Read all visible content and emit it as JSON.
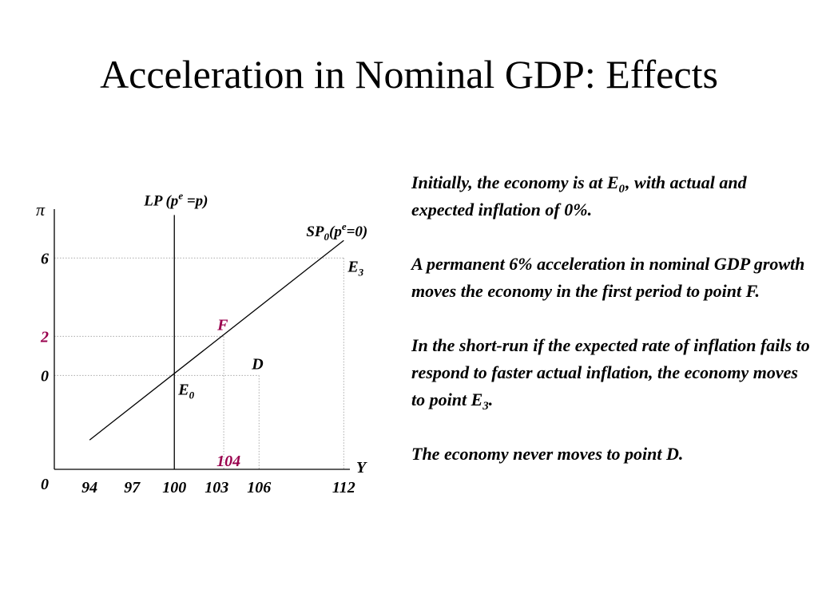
{
  "slide": {
    "title": "Acceleration in Nominal GDP: Effects"
  },
  "chart_data": {
    "type": "line",
    "y_axis_symbol": "π",
    "x_axis_symbol": "Y",
    "origin_label": "0",
    "xlim": [
      91.5,
      113
    ],
    "ylim": [
      -4.8,
      8.5
    ],
    "x_ticks": [
      {
        "value": 94,
        "label": "94"
      },
      {
        "value": 97,
        "label": "97"
      },
      {
        "value": 100,
        "label": "100"
      },
      {
        "value": 103,
        "label": "103"
      },
      {
        "value": 106,
        "label": "106"
      },
      {
        "value": 112,
        "label": "112"
      }
    ],
    "y_ticks": [
      {
        "value": 6,
        "label": "6",
        "color": "#000000"
      },
      {
        "value": 2,
        "label": "2",
        "color": "#99004d"
      },
      {
        "value": 0,
        "label": "0",
        "color": "#000000"
      }
    ],
    "series": [
      {
        "kind": "vertical",
        "x": 100,
        "y_range": [
          -4.8,
          8.2
        ],
        "label_main": "LP (p",
        "label_sup": "e",
        "label_end": " =p)"
      },
      {
        "kind": "line",
        "points": [
          [
            94,
            -3.3
          ],
          [
            112,
            6.9
          ]
        ],
        "label_main": "SP",
        "label_sub": "0",
        "label_mid": "(p",
        "label_sup": "e",
        "label_end": "=0)"
      }
    ],
    "points": [
      {
        "id": "E0",
        "x": 100,
        "y": 0,
        "label": "E",
        "sub": "0",
        "color": "#000000"
      },
      {
        "id": "F",
        "x": 103.5,
        "y": 2,
        "label": "F",
        "sub": "",
        "color": "#99004d"
      },
      {
        "id": "D",
        "x": 106,
        "y": 0,
        "label": "D",
        "sub": "",
        "color": "#000000"
      },
      {
        "id": "E3",
        "x": 112,
        "y": 6,
        "label": "E",
        "sub": "3",
        "color": "#000000"
      }
    ],
    "guides": [
      {
        "from": [
          91.5,
          6
        ],
        "to": [
          112,
          6
        ]
      },
      {
        "from": [
          112,
          6
        ],
        "to": [
          112,
          -4.8
        ]
      },
      {
        "from": [
          91.5,
          2
        ],
        "to": [
          103.5,
          2
        ]
      },
      {
        "from": [
          103.5,
          2
        ],
        "to": [
          103.5,
          -4.8
        ]
      },
      {
        "from": [
          91.5,
          0
        ],
        "to": [
          106,
          0
        ]
      },
      {
        "from": [
          106,
          0
        ],
        "to": [
          106,
          -4.8
        ]
      }
    ],
    "annotations": [
      {
        "text": "104",
        "x": 103.5,
        "color": "#99004d"
      }
    ],
    "colors": {
      "highlight": "#99004d",
      "axis": "#000000",
      "guide": "#aaaaaa"
    }
  },
  "notes": {
    "p1_pre": "Initially, the economy is at E",
    "p1_sub": "0",
    "p1_post": ", with actual and expected inflation of 0%.",
    "p2": "A permanent 6% acceleration in nominal GDP growth moves the economy in the first period to point F.",
    "p3_pre": "In the short-run if the expected rate of inflation fails to respond to faster actual inflation, the economy moves to point E",
    "p3_sub": "3",
    "p3_post": ".",
    "p4": "The economy never moves to point D."
  }
}
